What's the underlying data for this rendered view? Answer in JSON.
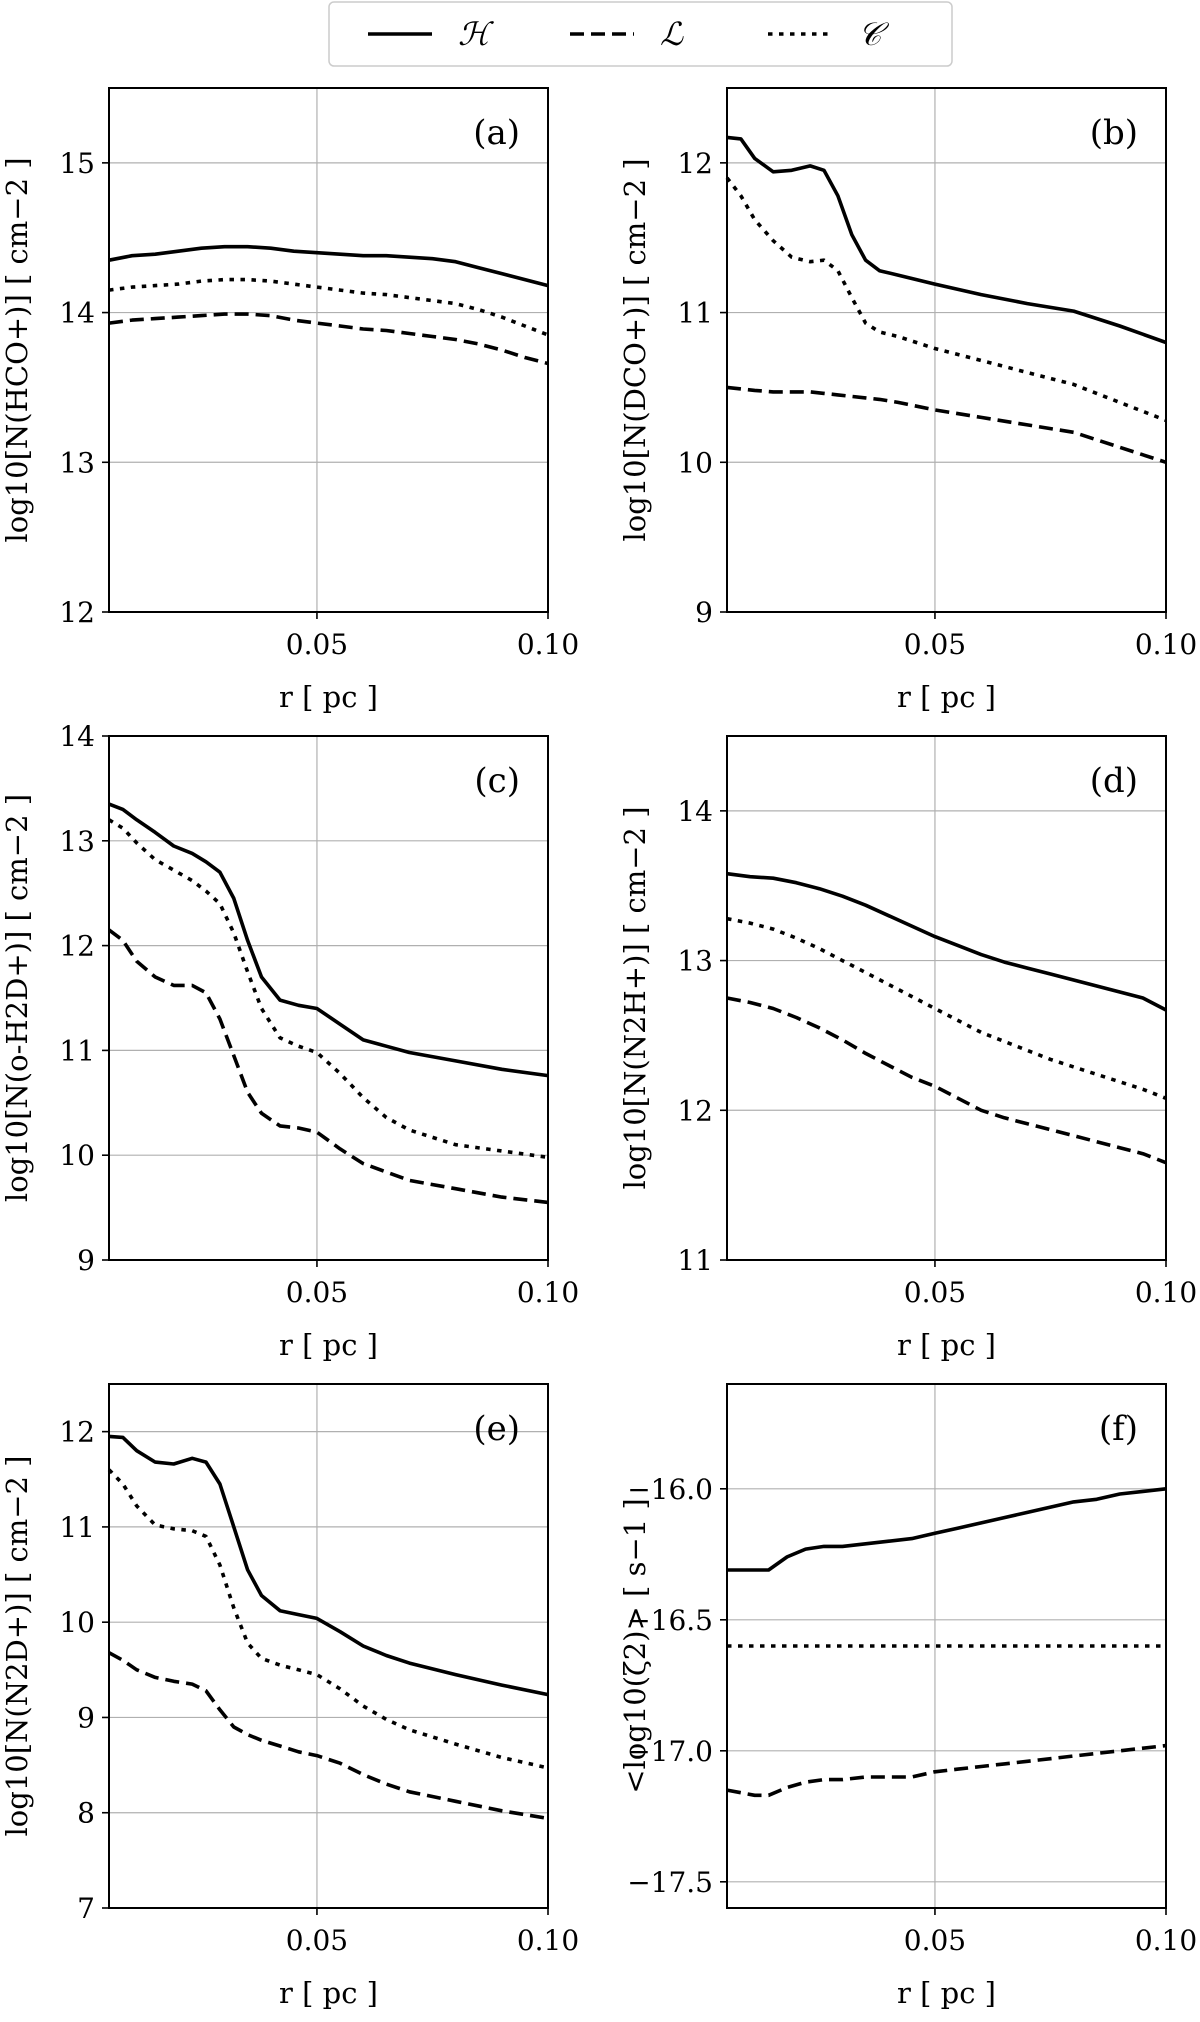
{
  "legend": [
    {
      "name": "ℋ",
      "style": "solid"
    },
    {
      "name": "ℒ",
      "style": "dashed"
    },
    {
      "name": "𝒞",
      "style": "dotted"
    }
  ],
  "chart_data": [
    {
      "type": "line",
      "panel_label": "(a)",
      "xlabel": "r [ pc ]",
      "ylabel": "log10[N(HCO+)] [ cm−2 ]",
      "xlim": [
        0.005,
        0.1
      ],
      "ylim": [
        12,
        15.5
      ],
      "xticks": [
        0.05,
        0.1
      ],
      "xtick_labels": [
        "0.05",
        "0.10"
      ],
      "yticks": [
        12,
        13,
        14,
        15
      ],
      "ytick_labels": [
        "12",
        "13",
        "14",
        "15"
      ],
      "x": [
        0.005,
        0.01,
        0.015,
        0.02,
        0.025,
        0.03,
        0.035,
        0.04,
        0.045,
        0.05,
        0.055,
        0.06,
        0.065,
        0.07,
        0.075,
        0.08,
        0.085,
        0.09,
        0.095,
        0.1
      ],
      "series": [
        {
          "name": "ℋ",
          "style": "solid",
          "values": [
            14.35,
            14.38,
            14.39,
            14.41,
            14.43,
            14.44,
            14.44,
            14.43,
            14.41,
            14.4,
            14.39,
            14.38,
            14.38,
            14.37,
            14.36,
            14.34,
            14.3,
            14.26,
            14.22,
            14.18
          ]
        },
        {
          "name": "ℒ",
          "style": "dashed",
          "values": [
            13.93,
            13.95,
            13.96,
            13.97,
            13.98,
            13.99,
            13.99,
            13.98,
            13.95,
            13.93,
            13.91,
            13.89,
            13.88,
            13.86,
            13.84,
            13.82,
            13.79,
            13.75,
            13.7,
            13.66
          ]
        },
        {
          "name": "𝒞",
          "style": "dotted",
          "values": [
            14.15,
            14.17,
            14.18,
            14.19,
            14.21,
            14.22,
            14.22,
            14.21,
            14.19,
            14.17,
            14.15,
            14.13,
            14.12,
            14.1,
            14.08,
            14.06,
            14.02,
            13.97,
            13.91,
            13.85
          ]
        }
      ]
    },
    {
      "type": "line",
      "panel_label": "(b)",
      "xlabel": "r [ pc ]",
      "ylabel": "log10[N(DCO+)] [ cm−2 ]",
      "xlim": [
        0.005,
        0.1
      ],
      "ylim": [
        9,
        12.5
      ],
      "xticks": [
        0.05,
        0.1
      ],
      "xtick_labels": [
        "0.05",
        "0.10"
      ],
      "yticks": [
        9,
        10,
        11,
        12
      ],
      "ytick_labels": [
        "9",
        "10",
        "11",
        "12"
      ],
      "x": [
        0.005,
        0.008,
        0.011,
        0.015,
        0.019,
        0.023,
        0.026,
        0.029,
        0.032,
        0.035,
        0.038,
        0.042,
        0.05,
        0.06,
        0.07,
        0.08,
        0.09,
        0.1
      ],
      "series": [
        {
          "name": "ℋ",
          "style": "solid",
          "values": [
            12.17,
            12.16,
            12.03,
            11.94,
            11.95,
            11.98,
            11.95,
            11.78,
            11.52,
            11.35,
            11.28,
            11.25,
            11.19,
            11.12,
            11.06,
            11.01,
            10.91,
            10.8
          ]
        },
        {
          "name": "ℒ",
          "style": "dashed",
          "values": [
            10.5,
            10.49,
            10.48,
            10.47,
            10.47,
            10.47,
            10.46,
            10.45,
            10.44,
            10.43,
            10.42,
            10.4,
            10.35,
            10.3,
            10.25,
            10.2,
            10.1,
            10.0
          ]
        },
        {
          "name": "𝒞",
          "style": "dotted",
          "values": [
            11.9,
            11.78,
            11.62,
            11.48,
            11.37,
            11.34,
            11.35,
            11.28,
            11.1,
            10.93,
            10.87,
            10.84,
            10.76,
            10.68,
            10.6,
            10.52,
            10.4,
            10.28
          ]
        }
      ]
    },
    {
      "type": "line",
      "panel_label": "(c)",
      "xlabel": "r [ pc ]",
      "ylabel": "log10[N(o-H2D+)] [ cm−2 ]",
      "xlim": [
        0.005,
        0.1
      ],
      "ylim": [
        9,
        14
      ],
      "xticks": [
        0.05,
        0.1
      ],
      "xtick_labels": [
        "0.05",
        "0.10"
      ],
      "yticks": [
        9,
        10,
        11,
        12,
        13,
        14
      ],
      "ytick_labels": [
        "9",
        "10",
        "11",
        "12",
        "13",
        "14"
      ],
      "x": [
        0.005,
        0.008,
        0.011,
        0.015,
        0.019,
        0.023,
        0.026,
        0.029,
        0.032,
        0.035,
        0.038,
        0.042,
        0.046,
        0.05,
        0.055,
        0.06,
        0.065,
        0.07,
        0.08,
        0.09,
        0.1
      ],
      "series": [
        {
          "name": "ℋ",
          "style": "solid",
          "values": [
            13.35,
            13.3,
            13.2,
            13.08,
            12.95,
            12.88,
            12.8,
            12.7,
            12.45,
            12.05,
            11.7,
            11.48,
            11.43,
            11.4,
            11.25,
            11.1,
            11.04,
            10.98,
            10.9,
            10.82,
            10.76
          ]
        },
        {
          "name": "ℒ",
          "style": "dashed",
          "values": [
            12.15,
            12.05,
            11.85,
            11.7,
            11.62,
            11.62,
            11.55,
            11.3,
            10.95,
            10.6,
            10.4,
            10.28,
            10.26,
            10.22,
            10.06,
            9.92,
            9.84,
            9.76,
            9.68,
            9.6,
            9.55
          ]
        },
        {
          "name": "𝒞",
          "style": "dotted",
          "values": [
            13.2,
            13.12,
            12.98,
            12.82,
            12.72,
            12.62,
            12.52,
            12.4,
            12.12,
            11.75,
            11.4,
            11.12,
            11.04,
            10.98,
            10.78,
            10.55,
            10.36,
            10.24,
            10.1,
            10.04,
            9.98
          ]
        }
      ]
    },
    {
      "type": "line",
      "panel_label": "(d)",
      "xlabel": "r [ pc ]",
      "ylabel": "log10[N(N2H+)] [ cm−2 ]",
      "xlim": [
        0.005,
        0.1
      ],
      "ylim": [
        11,
        14.5
      ],
      "xticks": [
        0.05,
        0.1
      ],
      "xtick_labels": [
        "0.05",
        "0.10"
      ],
      "yticks": [
        11,
        12,
        13,
        14
      ],
      "ytick_labels": [
        "11",
        "12",
        "13",
        "14"
      ],
      "x": [
        0.005,
        0.01,
        0.015,
        0.02,
        0.025,
        0.03,
        0.035,
        0.04,
        0.045,
        0.05,
        0.055,
        0.06,
        0.065,
        0.07,
        0.075,
        0.08,
        0.085,
        0.09,
        0.095,
        0.1
      ],
      "series": [
        {
          "name": "ℋ",
          "style": "solid",
          "values": [
            13.58,
            13.56,
            13.55,
            13.52,
            13.48,
            13.43,
            13.37,
            13.3,
            13.23,
            13.16,
            13.1,
            13.04,
            12.99,
            12.95,
            12.91,
            12.87,
            12.83,
            12.79,
            12.75,
            12.67
          ]
        },
        {
          "name": "ℒ",
          "style": "dashed",
          "values": [
            12.75,
            12.72,
            12.68,
            12.62,
            12.55,
            12.47,
            12.38,
            12.3,
            12.22,
            12.16,
            12.08,
            12.0,
            11.95,
            11.91,
            11.87,
            11.83,
            11.79,
            11.75,
            11.71,
            11.65
          ]
        },
        {
          "name": "𝒞",
          "style": "dotted",
          "values": [
            13.28,
            13.25,
            13.21,
            13.15,
            13.08,
            13.0,
            12.92,
            12.84,
            12.76,
            12.68,
            12.6,
            12.52,
            12.46,
            12.4,
            12.34,
            12.29,
            12.24,
            12.19,
            12.14,
            12.08
          ]
        }
      ]
    },
    {
      "type": "line",
      "panel_label": "(e)",
      "xlabel": "r [ pc ]",
      "ylabel": "log10[N(N2D+)] [ cm−2 ]",
      "xlim": [
        0.005,
        0.1
      ],
      "ylim": [
        7,
        12.5
      ],
      "xticks": [
        0.05,
        0.1
      ],
      "xtick_labels": [
        "0.05",
        "0.10"
      ],
      "yticks": [
        7,
        8,
        9,
        10,
        11,
        12
      ],
      "ytick_labels": [
        "7",
        "8",
        "9",
        "10",
        "11",
        "12"
      ],
      "x": [
        0.005,
        0.008,
        0.011,
        0.015,
        0.019,
        0.023,
        0.026,
        0.029,
        0.032,
        0.035,
        0.038,
        0.042,
        0.046,
        0.05,
        0.055,
        0.06,
        0.065,
        0.07,
        0.08,
        0.09,
        0.1
      ],
      "series": [
        {
          "name": "ℋ",
          "style": "solid",
          "values": [
            11.95,
            11.94,
            11.8,
            11.68,
            11.66,
            11.72,
            11.68,
            11.45,
            11.0,
            10.55,
            10.28,
            10.12,
            10.08,
            10.04,
            9.9,
            9.75,
            9.65,
            9.57,
            9.45,
            9.34,
            9.24
          ]
        },
        {
          "name": "ℒ",
          "style": "dashed",
          "values": [
            9.68,
            9.6,
            9.5,
            9.42,
            9.38,
            9.35,
            9.28,
            9.08,
            8.9,
            8.82,
            8.76,
            8.7,
            8.64,
            8.6,
            8.52,
            8.4,
            8.3,
            8.22,
            8.12,
            8.02,
            7.94
          ]
        },
        {
          "name": "𝒞",
          "style": "dotted",
          "values": [
            11.6,
            11.45,
            11.22,
            11.02,
            10.98,
            10.96,
            10.9,
            10.6,
            10.15,
            9.78,
            9.62,
            9.55,
            9.5,
            9.45,
            9.3,
            9.12,
            8.98,
            8.87,
            8.72,
            8.58,
            8.47
          ]
        }
      ]
    },
    {
      "type": "line",
      "panel_label": "(f)",
      "xlabel": "r [ pc ]",
      "ylabel": "<log10(ζ2)> [ s−1 ]",
      "xlim": [
        0.005,
        0.1
      ],
      "ylim": [
        -17.6,
        -15.6
      ],
      "xticks": [
        0.05,
        0.1
      ],
      "xtick_labels": [
        "0.05",
        "0.10"
      ],
      "yticks": [
        -17.5,
        -17.0,
        -16.5,
        -16.0
      ],
      "ytick_labels": [
        "−17.5",
        "−17.0",
        "−16.5",
        "−16.0"
      ],
      "x": [
        0.005,
        0.008,
        0.011,
        0.014,
        0.018,
        0.022,
        0.026,
        0.03,
        0.035,
        0.04,
        0.045,
        0.05,
        0.055,
        0.06,
        0.065,
        0.07,
        0.075,
        0.08,
        0.085,
        0.09,
        0.095,
        0.1
      ],
      "series": [
        {
          "name": "ℋ",
          "style": "solid",
          "values": [
            -16.31,
            -16.31,
            -16.31,
            -16.31,
            -16.26,
            -16.23,
            -16.22,
            -16.22,
            -16.21,
            -16.2,
            -16.19,
            -16.17,
            -16.15,
            -16.13,
            -16.11,
            -16.09,
            -16.07,
            -16.05,
            -16.04,
            -16.02,
            -16.01,
            -16.0
          ]
        },
        {
          "name": "ℒ",
          "style": "dashed",
          "values": [
            -17.15,
            -17.16,
            -17.17,
            -17.17,
            -17.14,
            -17.12,
            -17.11,
            -17.11,
            -17.1,
            -17.1,
            -17.1,
            -17.08,
            -17.07,
            -17.06,
            -17.05,
            -17.04,
            -17.03,
            -17.02,
            -17.01,
            -17.0,
            -16.99,
            -16.98
          ]
        },
        {
          "name": "𝒞",
          "style": "dotted",
          "values": [
            -16.6,
            -16.6,
            -16.6,
            -16.6,
            -16.6,
            -16.6,
            -16.6,
            -16.6,
            -16.6,
            -16.6,
            -16.6,
            -16.6,
            -16.6,
            -16.6,
            -16.6,
            -16.6,
            -16.6,
            -16.6,
            -16.6,
            -16.6,
            -16.6,
            -16.6
          ]
        }
      ]
    }
  ]
}
